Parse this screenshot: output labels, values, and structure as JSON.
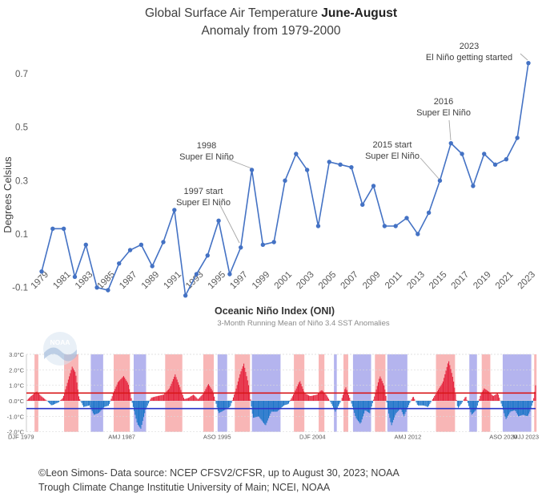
{
  "chart_data": [
    {
      "type": "line",
      "title": "Global Surface Air Temperature",
      "title_bold": "June-August",
      "subtitle": "Anomaly from 1979-2000",
      "xlabel": "",
      "ylabel": "Degrees Celsius",
      "ylim": [
        -0.1,
        0.8
      ],
      "yticks": [
        0.7,
        0.5,
        0.3,
        0.1,
        -0.1
      ],
      "ytick_labels": [
        "0.7",
        "0.5",
        "0.3",
        "0.1",
        "-0.1"
      ],
      "xtick_labels": [
        "1979",
        "1981",
        "1983",
        "1985",
        "1987",
        "1989",
        "1991",
        "1993",
        "1995",
        "1997",
        "1999",
        "2001",
        "2003",
        "2005",
        "2007",
        "2009",
        "2011",
        "2013",
        "2015",
        "2017",
        "2019",
        "2021",
        "2023"
      ],
      "color": "#4472C4",
      "x": [
        1979,
        1980,
        1981,
        1982,
        1983,
        1984,
        1985,
        1986,
        1987,
        1988,
        1989,
        1990,
        1991,
        1992,
        1993,
        1994,
        1995,
        1996,
        1997,
        1998,
        1999,
        2000,
        2001,
        2002,
        2003,
        2004,
        2005,
        2006,
        2007,
        2008,
        2009,
        2010,
        2011,
        2012,
        2013,
        2014,
        2015,
        2016,
        2017,
        2018,
        2019,
        2020,
        2021,
        2022,
        2023
      ],
      "y": [
        -0.04,
        0.12,
        0.12,
        -0.06,
        0.06,
        -0.1,
        -0.11,
        -0.01,
        0.04,
        0.06,
        -0.02,
        0.07,
        0.19,
        -0.13,
        -0.05,
        0.02,
        0.15,
        -0.05,
        0.05,
        0.34,
        0.06,
        0.07,
        0.3,
        0.4,
        0.34,
        0.13,
        0.37,
        0.36,
        0.35,
        0.21,
        0.28,
        0.13,
        0.13,
        0.16,
        0.1,
        0.18,
        0.3,
        0.44,
        0.4,
        0.28,
        0.4,
        0.36,
        0.38,
        0.46,
        0.74
      ],
      "annotations": [
        {
          "text": [
            "1997 start",
            "Super El Niño"
          ],
          "year": 1997
        },
        {
          "text": [
            "1998",
            "Super El Niño"
          ],
          "year": 1998
        },
        {
          "text": [
            "2015 start",
            "Super El Niño"
          ],
          "year": 2015
        },
        {
          "text": [
            "2016",
            "Super El Niño"
          ],
          "year": 2016
        },
        {
          "text": [
            "2023",
            "El Niño getting started"
          ],
          "year": 2023
        }
      ]
    },
    {
      "type": "bar",
      "title": "Oceanic Niño Index (ONI)",
      "subtitle": "3-Month Running Mean of Niño 3.4 SST Anomalies",
      "ylim": [
        -2.0,
        3.0
      ],
      "yticks": [
        3.0,
        2.0,
        1.0,
        0.0,
        -1.0,
        -2.0
      ],
      "ytick_labels": [
        "3.0°C",
        "2.0°C",
        "1.0°C",
        "0.0°C",
        "-1.0°C",
        "-2.0°C"
      ],
      "thresholds": [
        0.5,
        -0.5
      ],
      "xtick_labels": [
        "DJF 1979",
        "AMJ 1987",
        "ASO 1995",
        "DJF 2004",
        "AMJ 2012",
        "ASO 2020",
        "MJJ 2023"
      ],
      "x_start": 1979.0,
      "x_end": 2023.5,
      "positive_color": "#E5253E",
      "negative_color": "#1F77C9",
      "el_nino_shading": "#F8B6B6",
      "la_nina_shading": "#B4B4EE",
      "nodes": [
        [
          1979.0,
          0.0
        ],
        [
          1979.4,
          0.3
        ],
        [
          1979.9,
          0.6
        ],
        [
          1980.3,
          0.3
        ],
        [
          1980.8,
          0.0
        ],
        [
          1981.2,
          -0.3
        ],
        [
          1981.8,
          -0.1
        ],
        [
          1982.2,
          0.2
        ],
        [
          1982.6,
          1.2
        ],
        [
          1983.0,
          2.2
        ],
        [
          1983.3,
          1.8
        ],
        [
          1983.6,
          0.2
        ],
        [
          1984.0,
          -0.4
        ],
        [
          1984.5,
          -0.3
        ],
        [
          1984.9,
          -0.9
        ],
        [
          1985.3,
          -0.8
        ],
        [
          1985.8,
          -0.4
        ],
        [
          1986.2,
          -0.3
        ],
        [
          1986.6,
          0.5
        ],
        [
          1987.0,
          1.2
        ],
        [
          1987.5,
          1.6
        ],
        [
          1987.9,
          1.1
        ],
        [
          1988.3,
          -0.3
        ],
        [
          1988.7,
          -1.5
        ],
        [
          1989.0,
          -1.8
        ],
        [
          1989.4,
          -0.6
        ],
        [
          1989.9,
          0.2
        ],
        [
          1990.4,
          0.3
        ],
        [
          1991.0,
          0.4
        ],
        [
          1991.5,
          0.8
        ],
        [
          1992.0,
          1.7
        ],
        [
          1992.4,
          0.9
        ],
        [
          1992.8,
          0.1
        ],
        [
          1993.2,
          0.2
        ],
        [
          1993.6,
          0.4
        ],
        [
          1994.0,
          0.1
        ],
        [
          1994.5,
          0.5
        ],
        [
          1994.9,
          1.1
        ],
        [
          1995.3,
          0.6
        ],
        [
          1995.8,
          -0.8
        ],
        [
          1996.3,
          -0.6
        ],
        [
          1996.8,
          -0.4
        ],
        [
          1997.3,
          0.7
        ],
        [
          1997.7,
          1.8
        ],
        [
          1998.0,
          2.4
        ],
        [
          1998.4,
          1.1
        ],
        [
          1998.8,
          -1.1
        ],
        [
          1999.3,
          -1.0
        ],
        [
          1999.9,
          -1.6
        ],
        [
          2000.4,
          -0.7
        ],
        [
          2000.9,
          -0.7
        ],
        [
          2001.5,
          -0.3
        ],
        [
          2001.9,
          -0.2
        ],
        [
          2002.4,
          0.5
        ],
        [
          2002.9,
          1.3
        ],
        [
          2003.3,
          0.5
        ],
        [
          2003.8,
          0.3
        ],
        [
          2004.4,
          0.4
        ],
        [
          2004.8,
          0.7
        ],
        [
          2005.2,
          0.4
        ],
        [
          2005.6,
          -0.1
        ],
        [
          2006.0,
          -0.7
        ],
        [
          2006.5,
          0.0
        ],
        [
          2006.9,
          0.9
        ],
        [
          2007.3,
          0.1
        ],
        [
          2007.8,
          -1.1
        ],
        [
          2008.2,
          -1.5
        ],
        [
          2008.6,
          -0.6
        ],
        [
          2009.0,
          -0.8
        ],
        [
          2009.5,
          0.5
        ],
        [
          2009.9,
          1.6
        ],
        [
          2010.3,
          0.9
        ],
        [
          2010.6,
          -0.6
        ],
        [
          2010.9,
          -1.6
        ],
        [
          2011.3,
          -0.8
        ],
        [
          2011.7,
          -0.5
        ],
        [
          2012.0,
          -1.0
        ],
        [
          2012.4,
          -0.3
        ],
        [
          2012.8,
          0.3
        ],
        [
          2013.2,
          -0.3
        ],
        [
          2013.7,
          -0.3
        ],
        [
          2014.1,
          -0.4
        ],
        [
          2014.5,
          0.1
        ],
        [
          2014.9,
          0.6
        ],
        [
          2015.4,
          1.2
        ],
        [
          2015.9,
          2.6
        ],
        [
          2016.3,
          1.4
        ],
        [
          2016.7,
          -0.5
        ],
        [
          2017.0,
          -0.2
        ],
        [
          2017.4,
          0.3
        ],
        [
          2017.9,
          -0.9
        ],
        [
          2018.3,
          -0.6
        ],
        [
          2018.7,
          0.4
        ],
        [
          2019.0,
          0.8
        ],
        [
          2019.4,
          0.6
        ],
        [
          2019.8,
          0.3
        ],
        [
          2020.2,
          0.5
        ],
        [
          2020.6,
          -0.4
        ],
        [
          2020.9,
          -1.2
        ],
        [
          2021.3,
          -0.7
        ],
        [
          2021.7,
          -0.6
        ],
        [
          2022.0,
          -1.0
        ],
        [
          2022.4,
          -0.9
        ],
        [
          2022.8,
          -1.0
        ],
        [
          2023.0,
          -0.7
        ],
        [
          2023.3,
          0.0
        ],
        [
          2023.5,
          1.0
        ]
      ]
    }
  ],
  "credits": {
    "line1": "©Leon Simons- Data source: NCEP CFSV2/CFSR, up to August 30, 2023; NOAA",
    "line2": "Trough Climate Change Institutie University of Main; NCEI, NOAA"
  }
}
